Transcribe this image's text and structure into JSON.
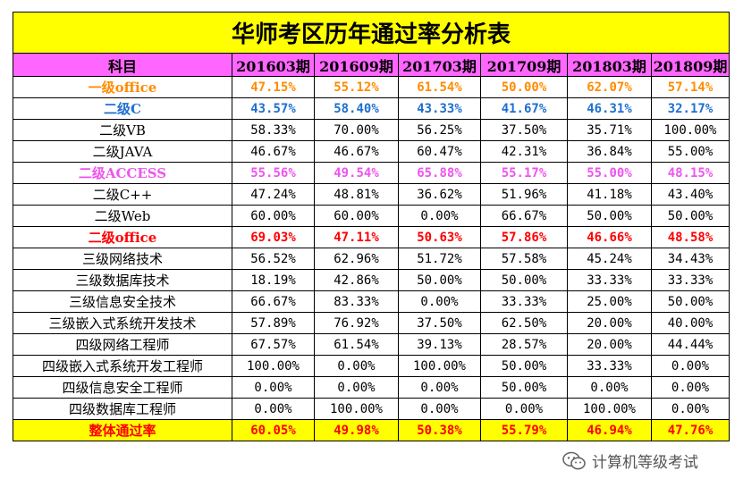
{
  "title": "华师考区历年通过率分析表",
  "header": [
    "科目",
    "201603期",
    "201609期",
    "201703期",
    "201709期",
    "201803期",
    "201809期"
  ],
  "rows": [
    {
      "subject": "一级office",
      "values": [
        "47.15%",
        "55.12%",
        "61.54%",
        "50.00%",
        "62.07%",
        "57.14%"
      ],
      "color": "#ff8c00",
      "bold": true
    },
    {
      "subject": "二级C",
      "values": [
        "43.57%",
        "58.40%",
        "43.33%",
        "41.67%",
        "46.31%",
        "32.17%"
      ],
      "color": "#1f6fd0",
      "bold": true
    },
    {
      "subject": "二级VB",
      "values": [
        "58.33%",
        "70.00%",
        "56.25%",
        "37.50%",
        "35.71%",
        "100.00%"
      ],
      "color": "#000000",
      "bold": false
    },
    {
      "subject": "二级JAVA",
      "values": [
        "46.67%",
        "46.67%",
        "60.47%",
        "42.31%",
        "36.84%",
        "55.00%"
      ],
      "color": "#000000",
      "bold": false
    },
    {
      "subject": "二级ACCESS",
      "values": [
        "55.56%",
        "49.54%",
        "65.88%",
        "55.17%",
        "55.00%",
        "48.15%"
      ],
      "color": "#ee55ee",
      "bold": true
    },
    {
      "subject": "二级C++",
      "values": [
        "47.24%",
        "48.81%",
        "36.62%",
        "51.96%",
        "41.18%",
        "43.40%"
      ],
      "color": "#000000",
      "bold": false
    },
    {
      "subject": "二级Web",
      "values": [
        "60.00%",
        "60.00%",
        "0.00%",
        "66.67%",
        "50.00%",
        "50.00%"
      ],
      "color": "#000000",
      "bold": false
    },
    {
      "subject": "二级office",
      "values": [
        "69.03%",
        "47.11%",
        "50.63%",
        "57.86%",
        "46.66%",
        "48.58%"
      ],
      "color": "#ff0000",
      "bold": true
    },
    {
      "subject": "三级网络技术",
      "values": [
        "56.52%",
        "62.96%",
        "51.72%",
        "57.58%",
        "45.24%",
        "34.43%"
      ],
      "color": "#000000",
      "bold": false
    },
    {
      "subject": "三级数据库技术",
      "values": [
        "18.19%",
        "42.86%",
        "50.00%",
        "50.00%",
        "33.33%",
        "33.33%"
      ],
      "color": "#000000",
      "bold": false
    },
    {
      "subject": "三级信息安全技术",
      "values": [
        "66.67%",
        "83.33%",
        "0.00%",
        "33.33%",
        "25.00%",
        "50.00%"
      ],
      "color": "#000000",
      "bold": false
    },
    {
      "subject": "三级嵌入式系统开发技术",
      "values": [
        "57.89%",
        "76.92%",
        "37.50%",
        "62.50%",
        "20.00%",
        "40.00%"
      ],
      "color": "#000000",
      "bold": false
    },
    {
      "subject": "四级网络工程师",
      "values": [
        "67.57%",
        "61.54%",
        "39.13%",
        "28.57%",
        "20.00%",
        "44.44%"
      ],
      "color": "#000000",
      "bold": false
    },
    {
      "subject": "四级嵌入式系统开发工程师",
      "values": [
        "100.00%",
        "0.00%",
        "100.00%",
        "50.00%",
        "33.33%",
        "0.00%"
      ],
      "color": "#000000",
      "bold": false
    },
    {
      "subject": "四级信息安全工程师",
      "values": [
        "0.00%",
        "0.00%",
        "0.00%",
        "50.00%",
        "0.00%",
        "0.00%"
      ],
      "color": "#000000",
      "bold": false
    },
    {
      "subject": "四级数据库工程师",
      "values": [
        "0.00%",
        "100.00%",
        "0.00%",
        "0.00%",
        "100.00%",
        "0.00%"
      ],
      "color": "#000000",
      "bold": false
    }
  ],
  "total": {
    "subject": "整体通过率",
    "values": [
      "60.05%",
      "49.98%",
      "50.38%",
      "55.79%",
      "46.94%",
      "47.76%"
    ]
  },
  "watermark": {
    "text": "计算机等级考试",
    "icon": "wechat-icon"
  }
}
